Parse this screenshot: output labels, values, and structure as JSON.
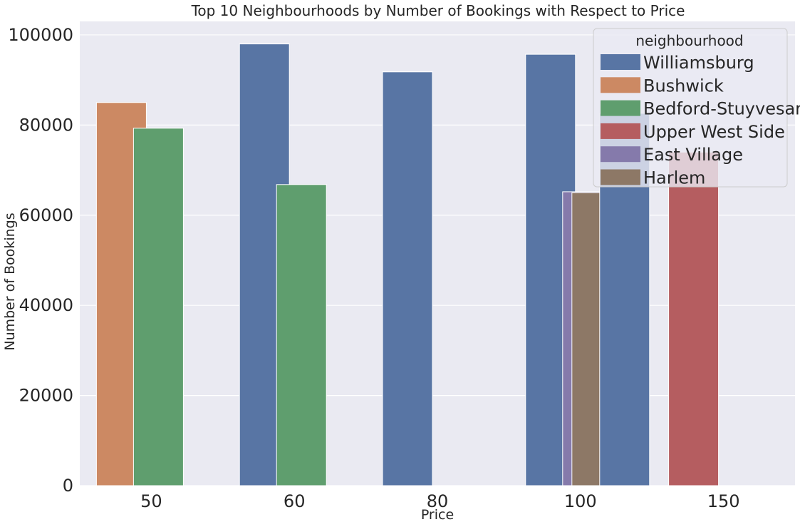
{
  "chart_data": {
    "type": "bar",
    "title": "Top 10 Neighbourhoods by Number of Bookings with Respect to Price",
    "xlabel": "Price",
    "ylabel": "Number of Bookings",
    "categories": [
      "50",
      "60",
      "80",
      "100",
      "150"
    ],
    "ylim": [
      0,
      103000
    ],
    "yticks": [
      0,
      20000,
      40000,
      60000,
      80000,
      100000
    ],
    "grid": true,
    "legend": {
      "title": "neighbourhood",
      "placement": "top-right",
      "entries": [
        "Williamsburg",
        "Bushwick",
        "Bedford-Stuyvesant",
        "Upper West Side",
        "East Village",
        "Harlem"
      ]
    },
    "colors": {
      "Williamsburg": "#5875a4",
      "Bushwick": "#cc8963",
      "Bedford-Stuyvesant": "#5f9e6e",
      "Upper West Side": "#b55d60",
      "East Village": "#857aab",
      "Harlem": "#8d7866"
    },
    "bars": [
      {
        "category": "50",
        "neighbourhood": "Bushwick",
        "value": 85000,
        "slot": 0
      },
      {
        "category": "50",
        "neighbourhood": "Bedford-Stuyvesant",
        "value": 79300,
        "slot": 1
      },
      {
        "category": "60",
        "neighbourhood": "Williamsburg",
        "value": 98000,
        "slot": 0
      },
      {
        "category": "60",
        "neighbourhood": "Bedford-Stuyvesant",
        "value": 66800,
        "slot": 1
      },
      {
        "category": "80",
        "neighbourhood": "Williamsburg",
        "value": 91800,
        "slot": 0
      },
      {
        "category": "100",
        "neighbourhood": "Williamsburg",
        "value": 95700,
        "slot": 0
      },
      {
        "category": "100",
        "neighbourhood": "East Village",
        "value": 65200,
        "slot": 1
      },
      {
        "category": "100",
        "neighbourhood": "Harlem",
        "value": 65000,
        "slot": 1.25
      },
      {
        "category": "100",
        "neighbourhood": "Williamsburg",
        "value": 82600,
        "slot": 2
      },
      {
        "category": "150",
        "neighbourhood": "Upper West Side",
        "value": 74000,
        "slot": 0
      }
    ]
  }
}
